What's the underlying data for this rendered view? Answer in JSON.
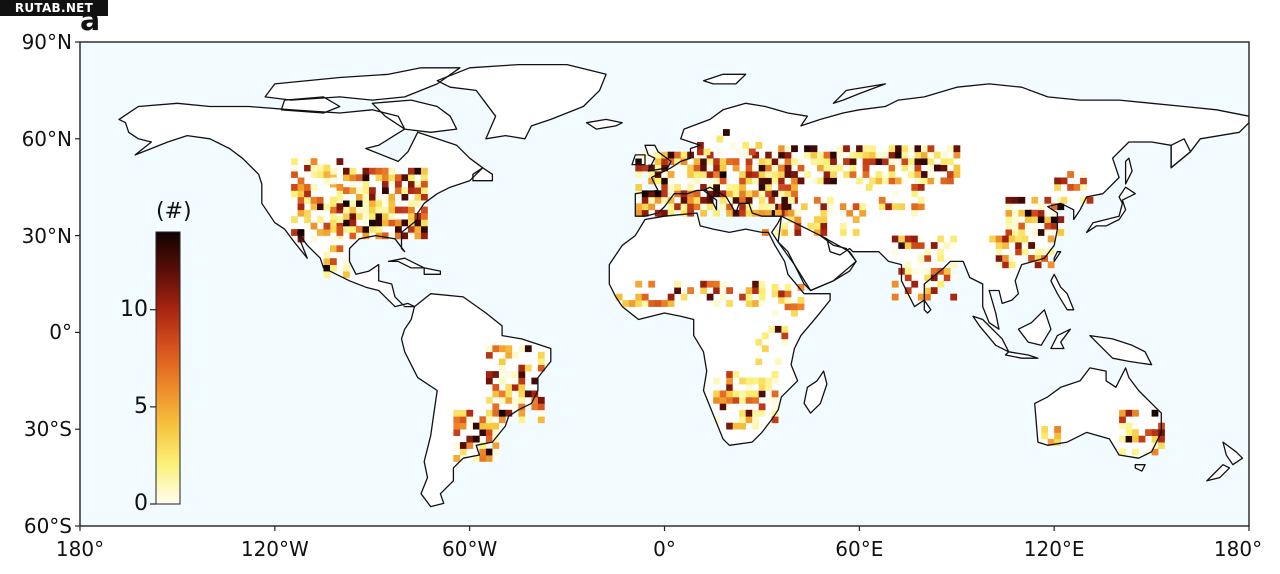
{
  "watermark": "RUTAB.NET",
  "panel_letter": "a",
  "map": {
    "projection": "equirectangular",
    "lon_range": [
      -180,
      180
    ],
    "lat_range": [
      -60,
      90
    ],
    "ocean_color": "#f2fbff",
    "land_color": "#ffffff",
    "coast_color": "#111111",
    "y_ticks": [
      {
        "lat": 90,
        "label": "90°N"
      },
      {
        "lat": 60,
        "label": "60°N"
      },
      {
        "lat": 30,
        "label": "30°N"
      },
      {
        "lat": 0,
        "label": "0°"
      },
      {
        "lat": -30,
        "label": "30°S"
      },
      {
        "lat": -60,
        "label": "60°S"
      }
    ],
    "x_ticks": [
      {
        "lon": -180,
        "label": "180°"
      },
      {
        "lon": -120,
        "label": "120°W"
      },
      {
        "lon": -60,
        "label": "60°W"
      },
      {
        "lon": 0,
        "label": "0°"
      },
      {
        "lon": 60,
        "label": "60°E"
      },
      {
        "lon": 120,
        "label": "120°E"
      },
      {
        "lon": 180,
        "label": "180°"
      }
    ]
  },
  "colorbar": {
    "title": "(#)",
    "range": [
      0,
      14
    ],
    "ticks": [
      {
        "value": 0,
        "label": "0"
      },
      {
        "value": 5,
        "label": "5"
      },
      {
        "value": 10,
        "label": "10"
      }
    ],
    "colors": [
      "#fffdf2",
      "#fbf27a",
      "#f6c43e",
      "#ed8a2a",
      "#d8531d",
      "#a82512",
      "#5a0e07",
      "#120302"
    ]
  },
  "hotspots": [
    {
      "region": "north-america-midwest",
      "lon": [
        -103,
        -73
      ],
      "lat": [
        29,
        50
      ],
      "density": 0.75
    },
    {
      "region": "north-america-plains",
      "lon": [
        -115,
        -100
      ],
      "lat": [
        28,
        53
      ],
      "density": 0.45
    },
    {
      "region": "mexico",
      "lon": [
        -105,
        -95
      ],
      "lat": [
        17,
        26
      ],
      "density": 0.35
    },
    {
      "region": "south-america-east",
      "lon": [
        -55,
        -38
      ],
      "lat": [
        -28,
        -5
      ],
      "density": 0.55
    },
    {
      "region": "pampas",
      "lon": [
        -65,
        -52
      ],
      "lat": [
        -40,
        -25
      ],
      "density": 0.7
    },
    {
      "region": "europe",
      "lon": [
        -9,
        40
      ],
      "lat": [
        36,
        55
      ],
      "density": 0.75
    },
    {
      "region": "scandinavia-baltic",
      "lon": [
        10,
        30
      ],
      "lat": [
        55,
        63
      ],
      "density": 0.4
    },
    {
      "region": "russia-kazakhstan",
      "lon": [
        35,
        90
      ],
      "lat": [
        46,
        58
      ],
      "density": 0.7
    },
    {
      "region": "middle-east",
      "lon": [
        30,
        60
      ],
      "lat": [
        30,
        42
      ],
      "density": 0.5
    },
    {
      "region": "central-asia",
      "lon": [
        60,
        80
      ],
      "lat": [
        36,
        46
      ],
      "density": 0.35
    },
    {
      "region": "india",
      "lon": [
        70,
        90
      ],
      "lat": [
        10,
        30
      ],
      "density": 0.45
    },
    {
      "region": "north-china",
      "lon": [
        105,
        122
      ],
      "lat": [
        30,
        42
      ],
      "density": 0.8
    },
    {
      "region": "south-china",
      "lon": [
        100,
        120
      ],
      "lat": [
        20,
        30
      ],
      "density": 0.45
    },
    {
      "region": "northeast-china",
      "lon": [
        120,
        133
      ],
      "lat": [
        40,
        50
      ],
      "density": 0.5
    },
    {
      "region": "sahel",
      "lon": [
        -15,
        30
      ],
      "lat": [
        8,
        15
      ],
      "density": 0.35
    },
    {
      "region": "ethiopia",
      "lon": [
        33,
        43
      ],
      "lat": [
        5,
        14
      ],
      "density": 0.45
    },
    {
      "region": "east-africa",
      "lon": [
        28,
        40
      ],
      "lat": [
        -10,
        2
      ],
      "density": 0.35
    },
    {
      "region": "southern-africa",
      "lon": [
        15,
        35
      ],
      "lat": [
        -30,
        -12
      ],
      "density": 0.55
    },
    {
      "region": "australia-southeast",
      "lon": [
        140,
        153
      ],
      "lat": [
        -38,
        -25
      ],
      "density": 0.55
    },
    {
      "region": "australia-southwest",
      "lon": [
        114,
        122
      ],
      "lat": [
        -35,
        -30
      ],
      "density": 0.4
    }
  ]
}
